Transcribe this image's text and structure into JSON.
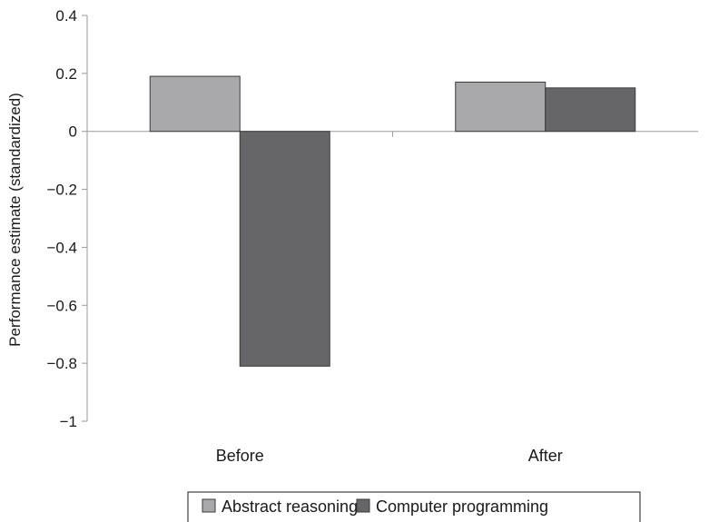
{
  "chart_data": {
    "type": "bar",
    "categories": [
      "Before",
      "After"
    ],
    "series": [
      {
        "name": "Abstract reasoning",
        "values": [
          0.19,
          0.17
        ],
        "color": "#a9a9ab"
      },
      {
        "name": "Computer programming",
        "values": [
          -0.81,
          0.15
        ],
        "color": "#666668"
      }
    ],
    "title": "",
    "xlabel": "",
    "ylabel": "Performance estimate (standardized)",
    "ylim": [
      -1,
      0.4
    ],
    "yticks": [
      0.4,
      0.2,
      0,
      -0.2,
      -0.4,
      -0.6,
      -0.8,
      -1
    ],
    "ytick_labels": [
      "0.4",
      "0.2",
      "0",
      "−0.2",
      "−0.4",
      "−0.6",
      "−0.8",
      "−1"
    ],
    "grid": false,
    "legend_position": "bottom"
  }
}
